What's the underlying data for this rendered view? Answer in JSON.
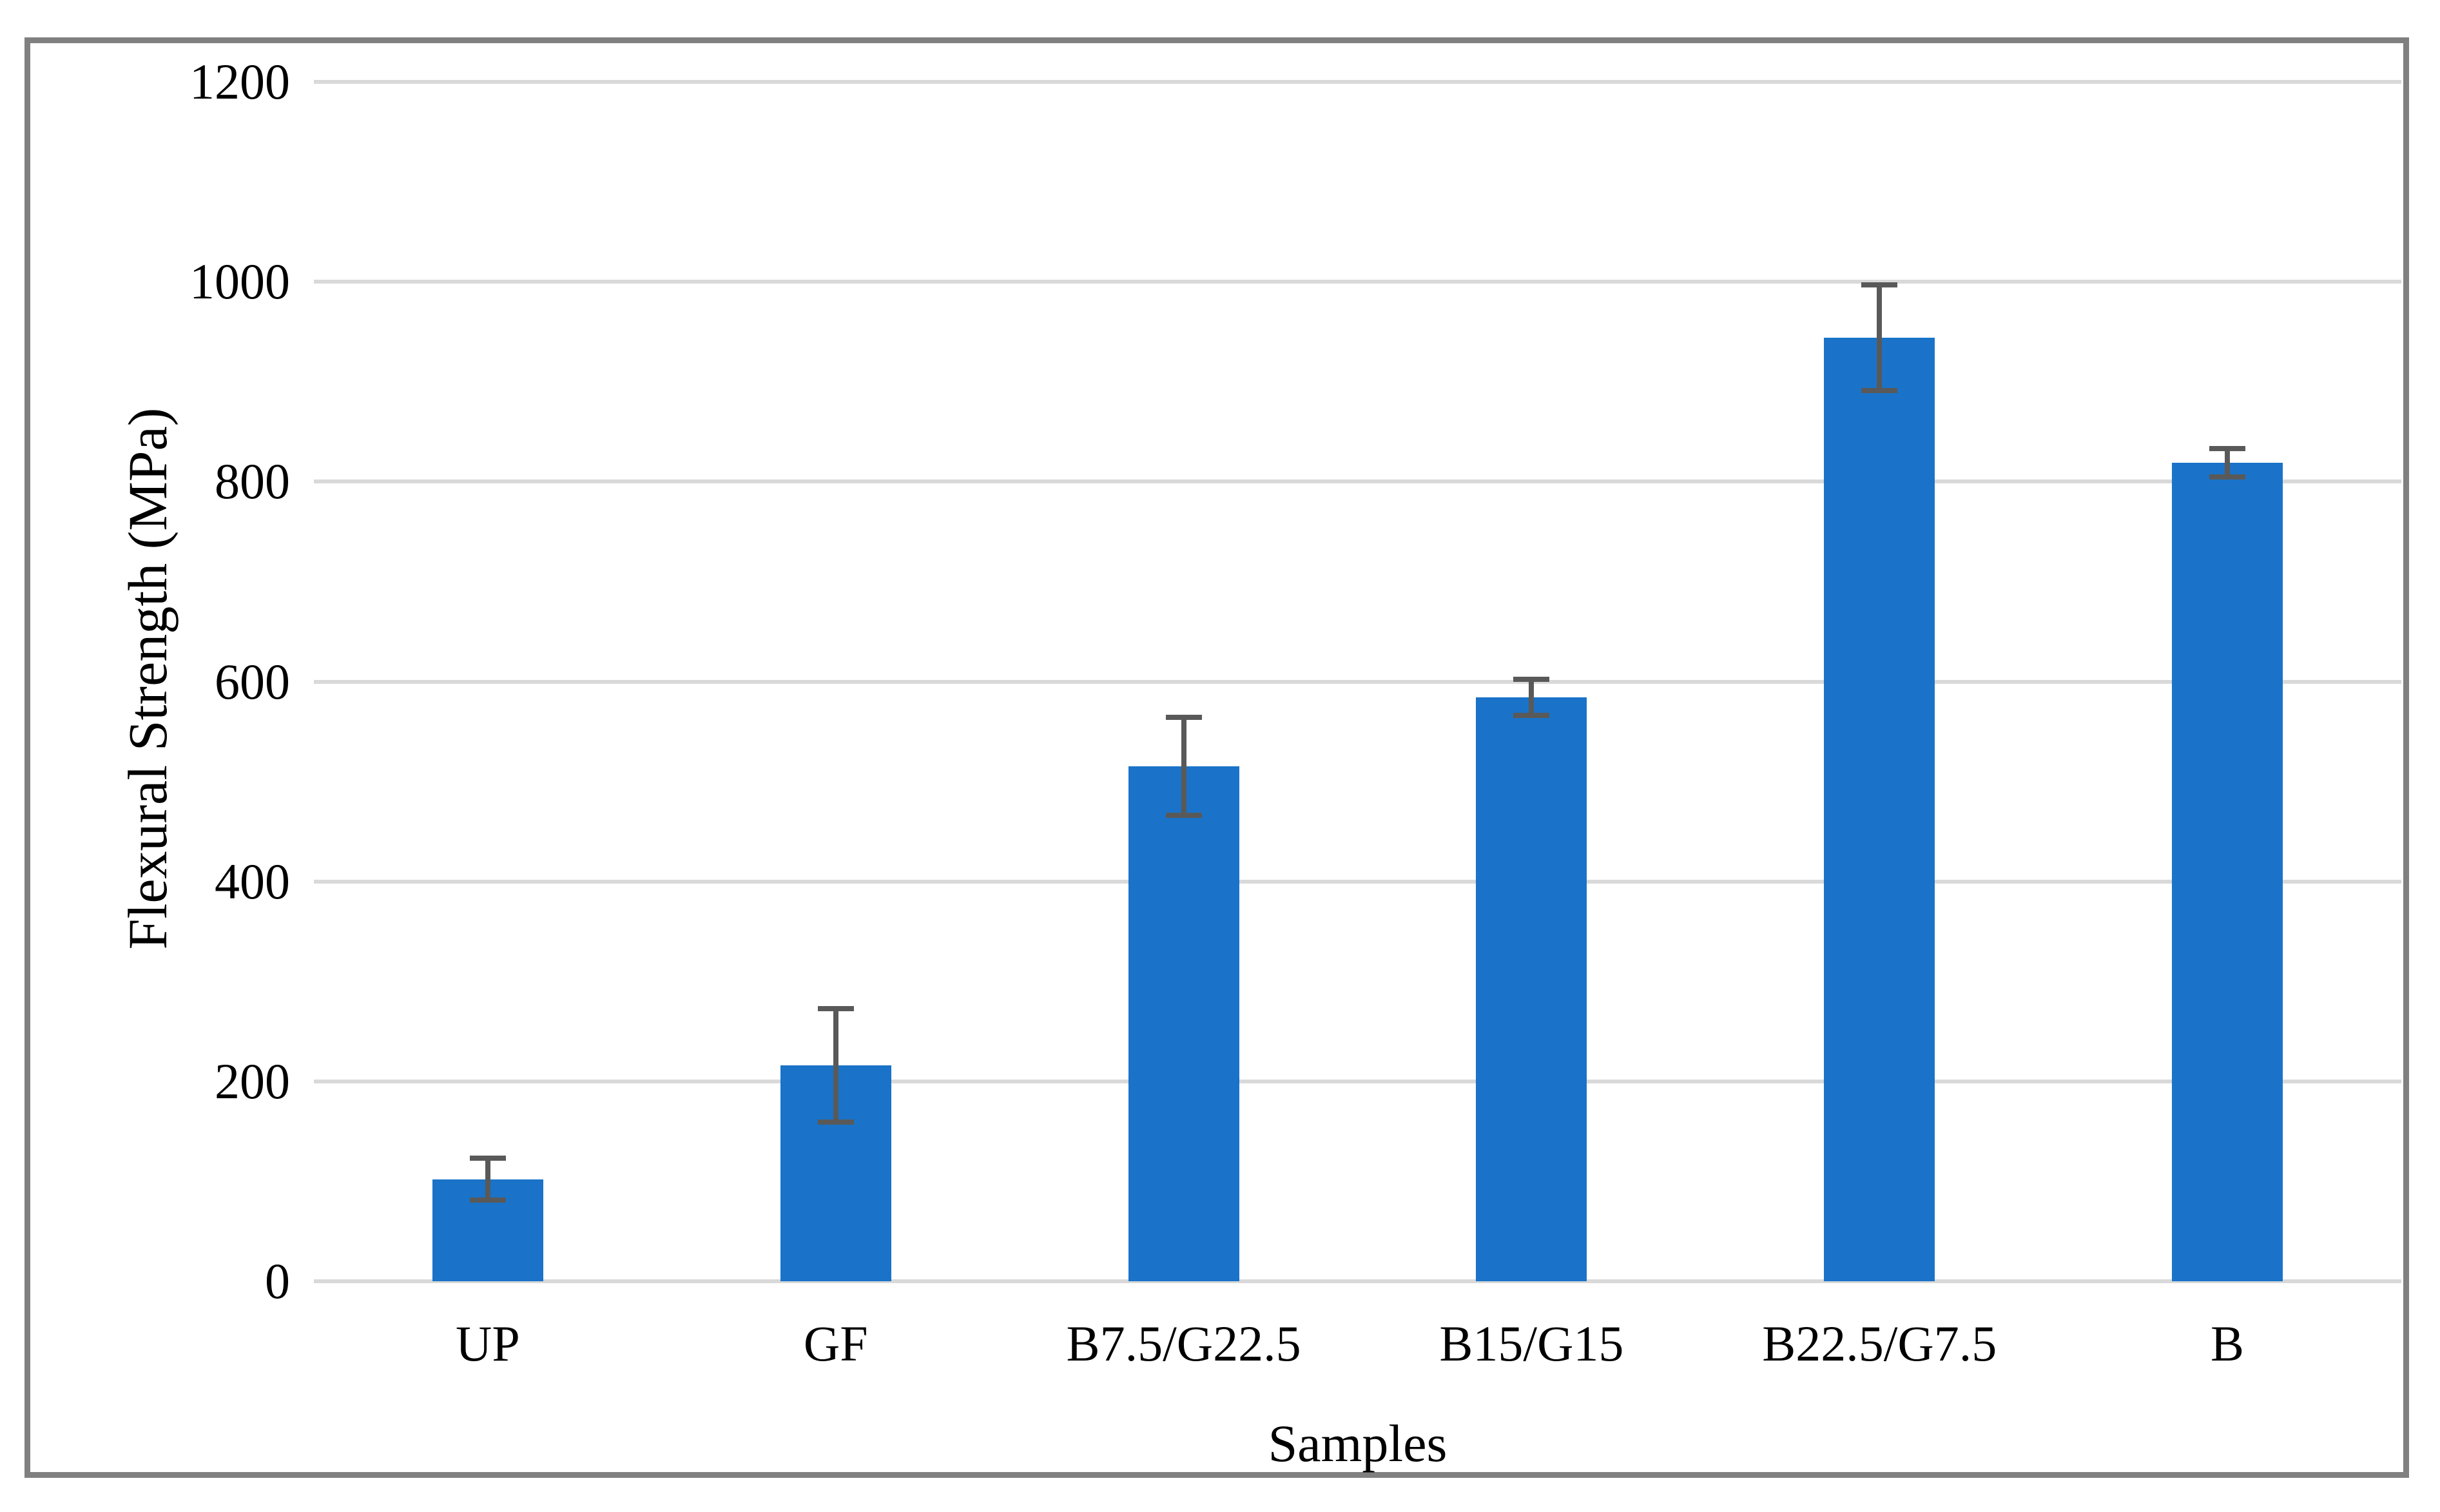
{
  "chart_data": {
    "type": "bar",
    "title": "",
    "xlabel": "Samples",
    "ylabel": "Flexural Strength (MPa)",
    "categories": [
      "UP",
      "GF",
      "B7.5/G22.5",
      "B15/G15",
      "B22.5/G7.5",
      "B"
    ],
    "values": [
      102,
      216,
      515,
      584,
      944,
      819
    ],
    "errors": [
      21,
      57,
      49,
      18,
      53,
      14
    ],
    "ylim": [
      0,
      1200
    ],
    "ytick_interval": 200,
    "yticks": [
      0,
      200,
      400,
      600,
      800,
      1000,
      1200
    ],
    "grid": true,
    "legend": "none",
    "colors": {
      "bar": "#1A73C8",
      "gridline": "#D9D9D9",
      "error_bar": "#595959",
      "frame_border": "#808080",
      "text": "#000000",
      "background": "#ffffff"
    }
  }
}
